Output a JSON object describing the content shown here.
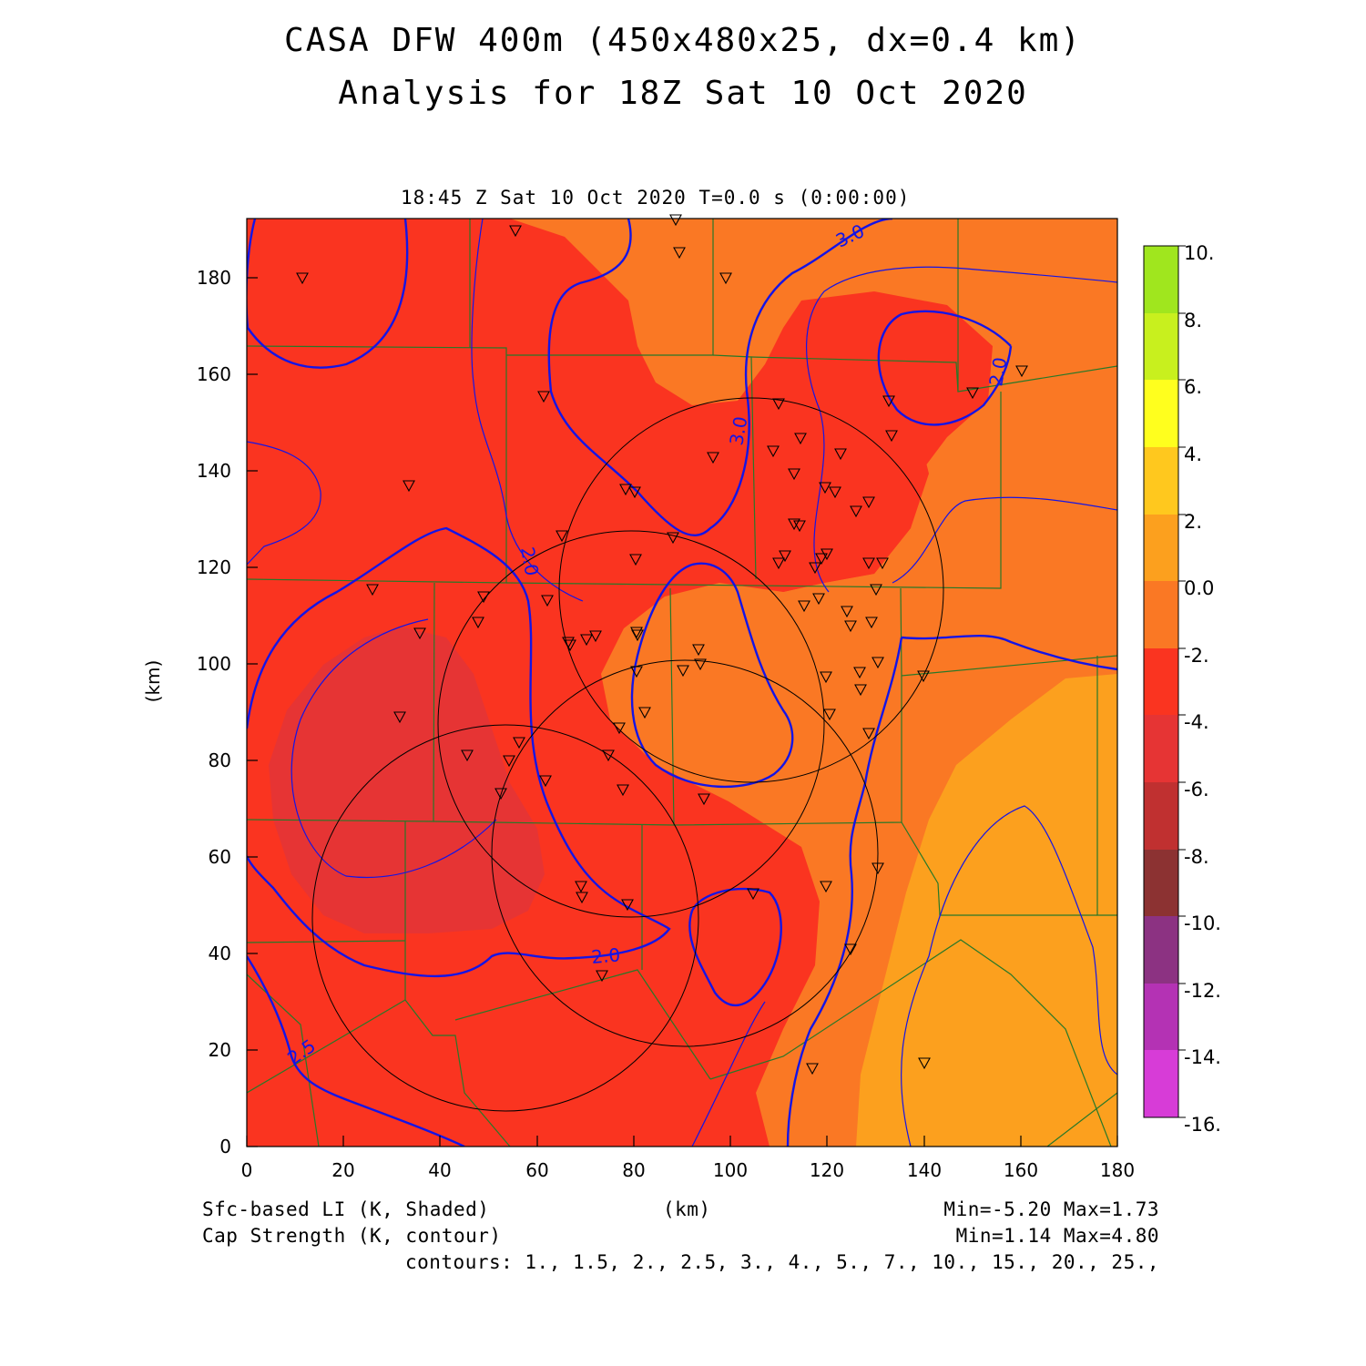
{
  "title_line1": "CASA DFW 400m (450x480x25, dx=0.4 km)",
  "title_line2": "Analysis for 18Z Sat 10 Oct 2020",
  "subtitle": "18:45 Z Sat 10 Oct 2020    T=0.0 s (0:00:00)",
  "axes": {
    "xlabel": "(km)",
    "ylabel": "(km)",
    "x_ticks": [
      "0",
      "20",
      "40",
      "60",
      "80",
      "100",
      "120",
      "140",
      "160",
      "180"
    ],
    "y_ticks": [
      "0",
      "20",
      "40",
      "60",
      "80",
      "100",
      "120",
      "140",
      "160",
      "180"
    ],
    "xlim": [
      0,
      180
    ],
    "ylim": [
      0,
      192
    ]
  },
  "colorbar": {
    "labels": [
      "10.",
      "8.",
      "6.",
      "4.",
      "2.",
      "0.0",
      "-2.",
      "-4.",
      "-6.",
      "-8.",
      "-10.",
      "-12.",
      "-14.",
      "-16."
    ],
    "colors": [
      "#a0e61e",
      "#c8f01e",
      "#ffff1e",
      "#ffc81e",
      "#fca01e",
      "#fa7824",
      "#fa3420",
      "#e63434",
      "#c03030",
      "#8c3232",
      "#8c3282",
      "#b432b4",
      "#d73cd7"
    ]
  },
  "contour_labels": [
    "3.0",
    "3.0",
    "2.0",
    "2.0",
    "2.0",
    "2.5"
  ],
  "footer": {
    "field1": "Sfc-based LI (K, Shaded)",
    "field2": "Cap Strength (K, contour)",
    "xunit": "(km)",
    "minmax1": "Min=-5.20 Max=1.73",
    "minmax2": "Min=1.14 Max=4.80",
    "contours": "contours: 1., 1.5, 2., 2.5, 3., 4., 5., 7., 10., 15., 20., 25.,"
  },
  "colors": {
    "contour": "#1414e6",
    "county_border": "#287828",
    "frame": "#000000"
  }
}
